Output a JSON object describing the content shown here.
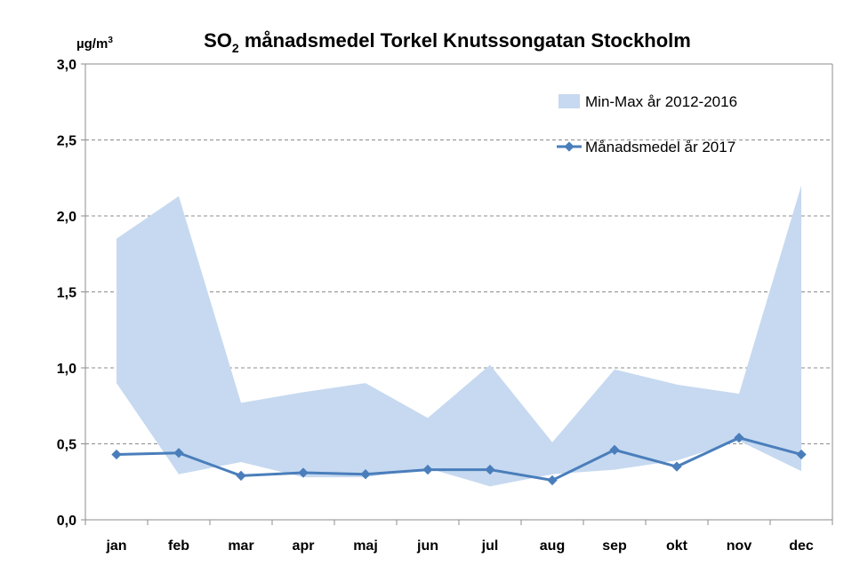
{
  "chart_data": {
    "type": "area",
    "title_main": "SO",
    "title_sub": "2",
    "title_rest": " månadsmedel Torkel Knutssongatan Stockholm",
    "unit_main": "µg/m",
    "unit_sup": "3",
    "categories": [
      "jan",
      "feb",
      "mar",
      "apr",
      "maj",
      "jun",
      "jul",
      "aug",
      "sep",
      "okt",
      "nov",
      "dec"
    ],
    "y_ticks": [
      "0,0",
      "0,5",
      "1,0",
      "1,5",
      "2,0",
      "2,5",
      "3,0"
    ],
    "ylim": [
      0,
      3.0
    ],
    "grid": "horizontal dashed",
    "legend_position": "top-right",
    "series": [
      {
        "name": "Min-Max år 2012-2016",
        "kind": "range-band",
        "color": "#c6d9f0",
        "min": [
          0.9,
          0.3,
          0.38,
          0.28,
          0.28,
          0.34,
          0.22,
          0.3,
          0.33,
          0.39,
          0.52,
          0.32
        ],
        "max": [
          1.85,
          2.13,
          0.77,
          0.84,
          0.9,
          0.67,
          1.02,
          0.51,
          0.99,
          0.89,
          0.83,
          2.2
        ]
      },
      {
        "name": "Månadsmedel år 2017",
        "kind": "line",
        "color": "#4a7ebb",
        "values": [
          0.43,
          0.44,
          0.29,
          0.31,
          0.3,
          0.33,
          0.33,
          0.26,
          0.46,
          0.35,
          0.54,
          0.43
        ]
      }
    ]
  }
}
